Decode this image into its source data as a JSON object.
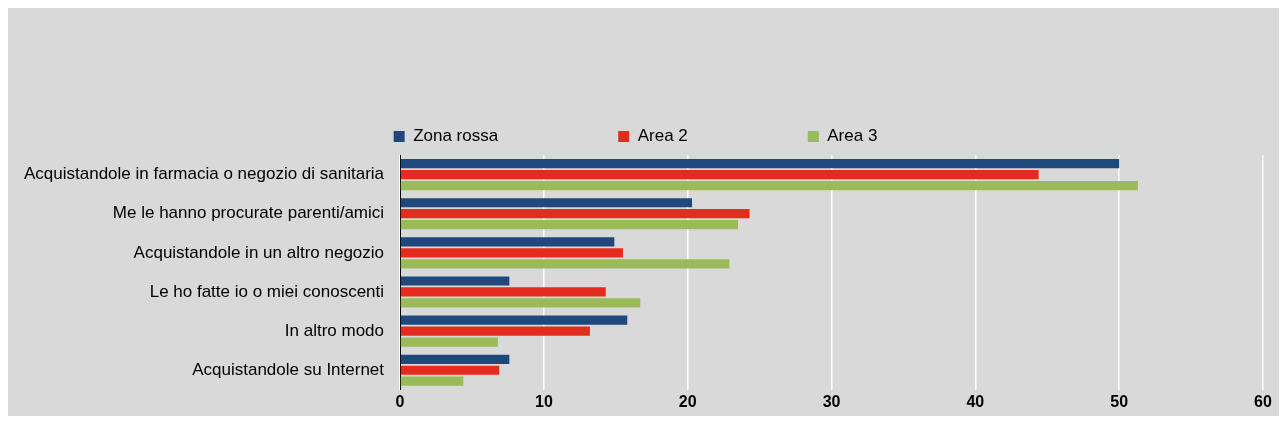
{
  "chart_data": {
    "type": "bar",
    "orientation": "horizontal",
    "categories": [
      "Acquistandole in farmacia o negozio di sanitaria",
      "Me le hanno procurate parenti/amici",
      "Acquistandole in un altro negozio",
      "Le ho fatte io o miei conoscenti",
      "In altro modo",
      "Acquistandole su Internet"
    ],
    "series": [
      {
        "name": "Zona rossa",
        "color": "#1f497d",
        "values": [
          50,
          20.3,
          14.9,
          7.6,
          15.8,
          7.6
        ]
      },
      {
        "name": "Area 2",
        "color": "#e32b1e",
        "values": [
          44.4,
          24.3,
          15.5,
          14.3,
          13.2,
          6.9
        ]
      },
      {
        "name": "Area 3",
        "color": "#9bbb59",
        "values": [
          51.3,
          23.5,
          22.9,
          16.7,
          6.8,
          4.4
        ]
      }
    ],
    "xlim": [
      0,
      60
    ],
    "xticks": [
      0,
      10,
      20,
      30,
      40,
      50,
      60
    ],
    "grid": "x",
    "legend": "top"
  }
}
